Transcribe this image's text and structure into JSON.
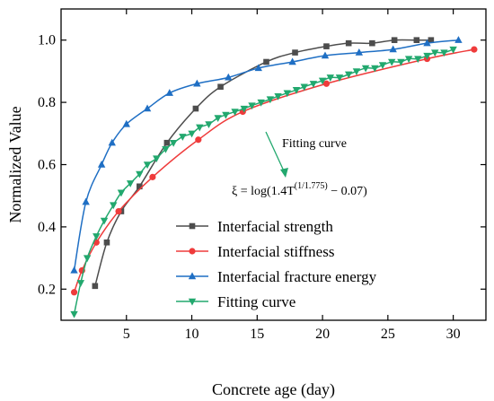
{
  "chart_data": {
    "type": "line",
    "xlabel": "Concrete age (day)",
    "ylabel": "Normalized Value",
    "xlim": [
      0,
      32.5
    ],
    "ylim": [
      0.1,
      1.1
    ],
    "xticks": [
      "5",
      "10",
      "15",
      "20",
      "25",
      "30"
    ],
    "yticks": [
      "0.2",
      "0.4",
      "0.6",
      "0.8",
      "1.0"
    ],
    "legend_position": "bottom-right",
    "series": [
      {
        "name": "Interfacial strength",
        "color": "#4d4d4d",
        "marker": "square",
        "x": [
          2.6,
          3.5,
          4.6,
          6.0,
          8.1,
          10.3,
          12.2,
          15.7,
          17.9,
          20.3,
          22.0,
          23.8,
          25.5,
          27.2,
          28.3
        ],
        "y": [
          0.21,
          0.35,
          0.45,
          0.53,
          0.67,
          0.78,
          0.85,
          0.93,
          0.96,
          0.98,
          0.99,
          0.99,
          1.0,
          1.0,
          1.0
        ]
      },
      {
        "name": "Interfacial stiffness",
        "color": "#ef3b3b",
        "marker": "circle",
        "x": [
          1.0,
          1.6,
          2.7,
          4.4,
          7.0,
          10.5,
          13.9,
          20.3,
          28.0,
          31.6
        ],
        "y": [
          0.19,
          0.26,
          0.35,
          0.45,
          0.56,
          0.68,
          0.77,
          0.86,
          0.94,
          0.97
        ]
      },
      {
        "name": "Interfacial fracture energy",
        "color": "#1f6fc4",
        "marker": "triangle-up",
        "x": [
          1.0,
          1.9,
          3.1,
          3.9,
          5.0,
          6.6,
          8.3,
          10.4,
          12.8,
          15.1,
          17.7,
          20.2,
          22.8,
          25.4,
          28.0,
          30.4
        ],
        "y": [
          0.26,
          0.48,
          0.6,
          0.67,
          0.73,
          0.78,
          0.83,
          0.86,
          0.88,
          0.91,
          0.93,
          0.95,
          0.96,
          0.97,
          0.99,
          1.0
        ]
      },
      {
        "name": "Fitting curve",
        "color": "#22a86e",
        "marker": "triangle-down",
        "x": [
          1.0,
          1.5,
          2.0,
          2.7,
          3.3,
          4.0,
          4.6,
          5.3,
          6.0,
          6.6,
          7.3,
          8.0,
          8.6,
          9.3,
          10.0,
          10.6,
          11.3,
          12.0,
          12.6,
          13.3,
          14.0,
          14.6,
          15.3,
          16.0,
          16.6,
          17.3,
          18.0,
          18.6,
          19.3,
          20.0,
          20.6,
          21.3,
          22.0,
          22.6,
          23.3,
          24.0,
          24.6,
          25.3,
          26.0,
          26.6,
          27.3,
          28.0,
          28.6,
          29.3,
          30.0
        ],
        "y": [
          0.12,
          0.22,
          0.3,
          0.37,
          0.42,
          0.47,
          0.51,
          0.54,
          0.57,
          0.6,
          0.62,
          0.65,
          0.67,
          0.69,
          0.7,
          0.72,
          0.73,
          0.75,
          0.76,
          0.77,
          0.78,
          0.79,
          0.8,
          0.81,
          0.82,
          0.83,
          0.84,
          0.85,
          0.86,
          0.87,
          0.88,
          0.88,
          0.89,
          0.9,
          0.91,
          0.91,
          0.92,
          0.93,
          0.93,
          0.94,
          0.94,
          0.95,
          0.96,
          0.96,
          0.97
        ]
      }
    ],
    "annotation": {
      "label": "Fitting curve",
      "formula_prefix": "ξ = log(1.4T",
      "formula_exponent": "(1/1.775)",
      "formula_suffix": " − 0.07)"
    }
  }
}
